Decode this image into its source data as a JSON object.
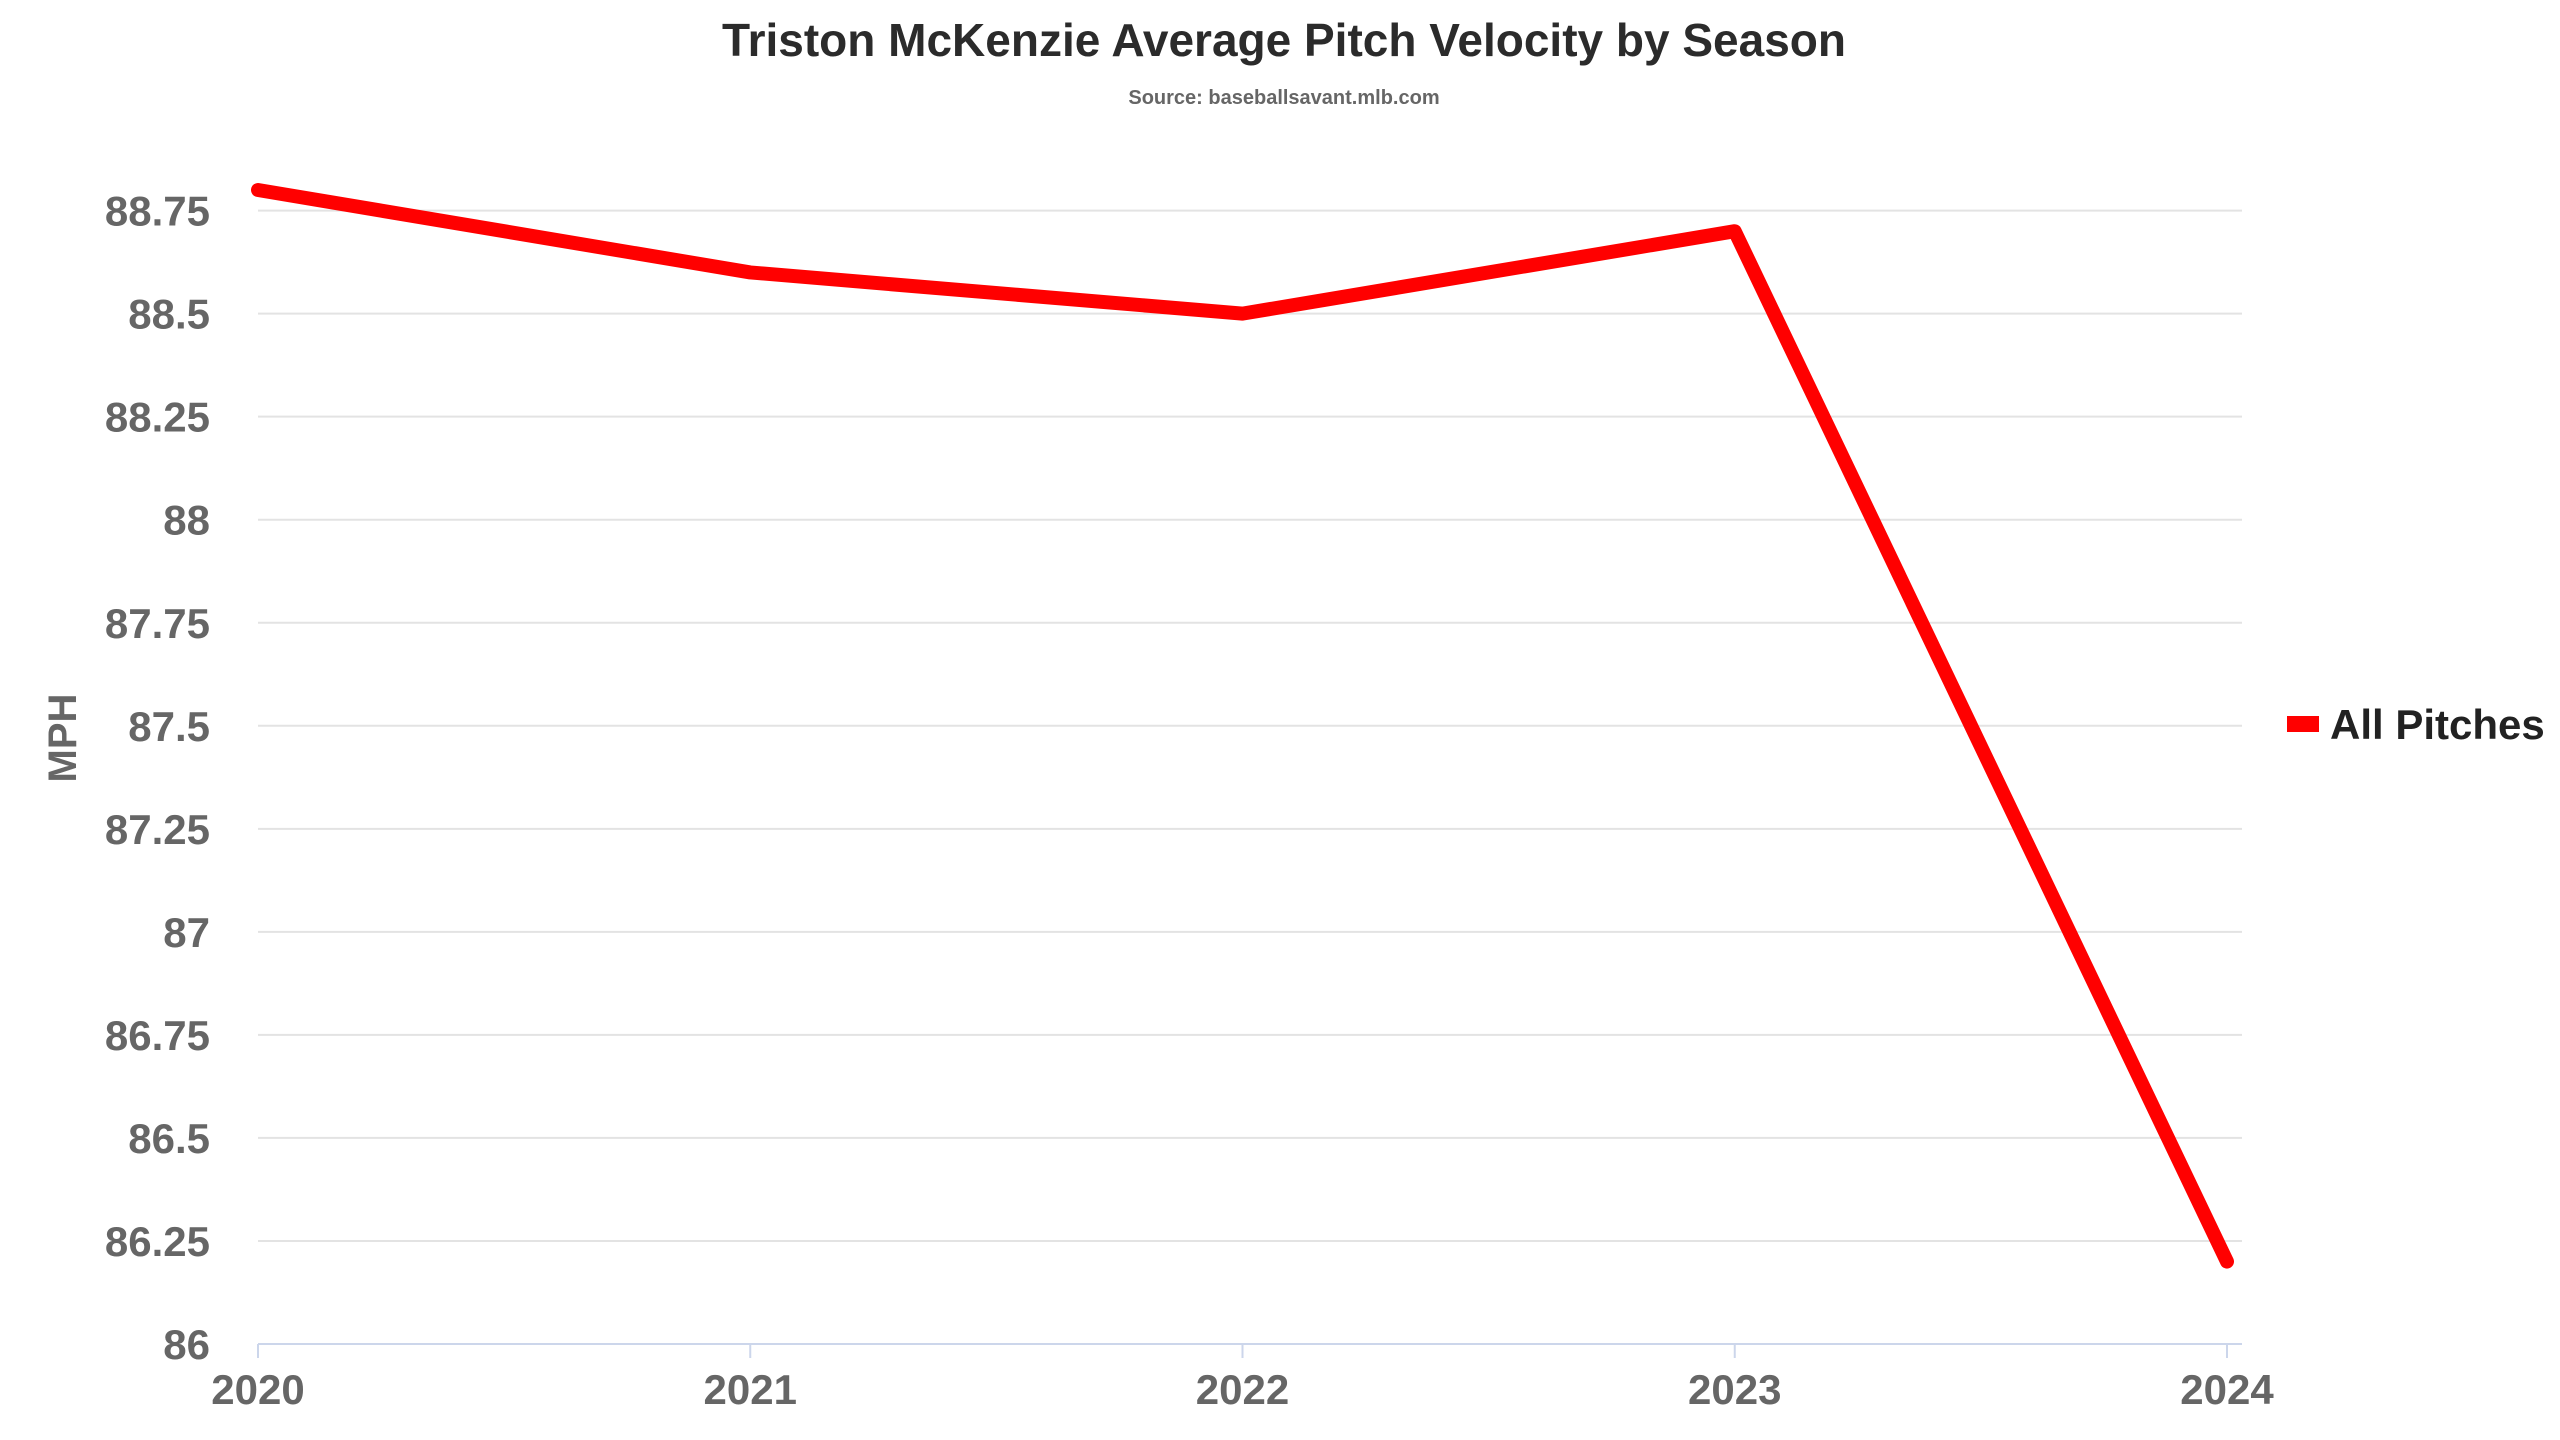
{
  "chart_data": {
    "type": "line",
    "title": "Triston McKenzie Average Pitch Velocity by Season",
    "subtitle": "Source: baseballsavant.mlb.com",
    "xlabel": "",
    "ylabel": "MPH",
    "categories": [
      "2020",
      "2021",
      "2022",
      "2023",
      "2024"
    ],
    "series": [
      {
        "name": "All Pitches",
        "color": "#ff0000",
        "values": [
          88.8,
          88.6,
          88.5,
          88.7,
          86.2
        ]
      }
    ],
    "ylim": [
      86,
      88.8
    ],
    "yticks": [
      86,
      86.25,
      86.5,
      86.75,
      87,
      87.25,
      87.5,
      87.75,
      88,
      88.25,
      88.5,
      88.75
    ],
    "ytick_labels": [
      "86",
      "86.25",
      "86.5",
      "86.75",
      "87",
      "87.25",
      "87.5",
      "87.75",
      "88",
      "88.25",
      "88.5",
      "88.75"
    ],
    "grid": true,
    "legend": "right"
  }
}
